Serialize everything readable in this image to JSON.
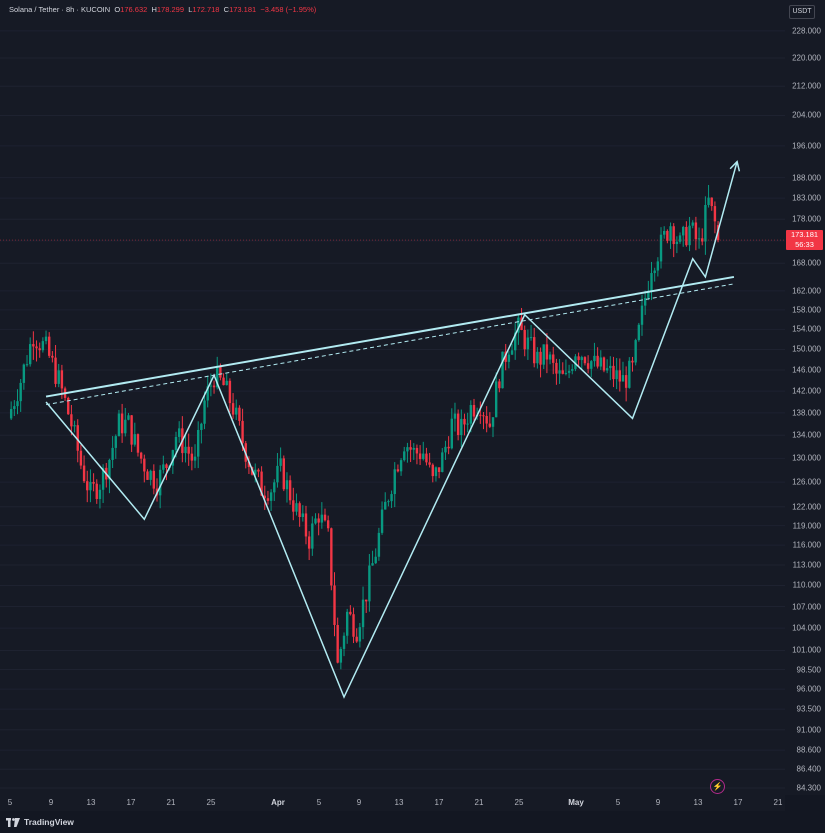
{
  "header": {
    "symbol": "Solana / Tether · 8h · KUCOIN",
    "open_label": "O",
    "open": "176.632",
    "high_label": "H",
    "high": "178.299",
    "low_label": "L",
    "low": "172.718",
    "close_label": "C",
    "close": "173.181",
    "change": "−3.458 (−1.95%)"
  },
  "currency": "USDT",
  "last_price": {
    "price": "173.181",
    "countdown": "56:33"
  },
  "brand": "TradingView",
  "colors": {
    "up": "#089981",
    "down": "#f23645",
    "background": "#161a25",
    "drawing": "#b2ebf2"
  },
  "chart_data": {
    "type": "candlestick",
    "price_scale": "log",
    "ylim": [
      84.3,
      236
    ],
    "y_ticks": [
      "228.000",
      "220.000",
      "212.000",
      "204.000",
      "196.000",
      "188.000",
      "183.000",
      "178.000",
      "173.000",
      "168.000",
      "162.000",
      "158.000",
      "154.000",
      "150.000",
      "146.000",
      "142.000",
      "138.000",
      "134.000",
      "130.000",
      "126.000",
      "122.000",
      "119.000",
      "116.000",
      "113.000",
      "110.000",
      "107.000",
      "104.000",
      "101.000",
      "98.500",
      "96.000",
      "93.500",
      "91.000",
      "88.600",
      "86.400",
      "84.300"
    ],
    "x_ticks": [
      "5",
      "9",
      "13",
      "17",
      "21",
      "25",
      "Apr",
      "5",
      "9",
      "13",
      "17",
      "21",
      "25",
      "May",
      "5",
      "9",
      "13",
      "17",
      "21"
    ],
    "price_path": [
      {
        "x": 0,
        "y": 137
      },
      {
        "x": 4,
        "y": 144
      },
      {
        "x": 8,
        "y": 153
      },
      {
        "x": 12,
        "y": 150
      },
      {
        "x": 16,
        "y": 144
      },
      {
        "x": 20,
        "y": 136
      },
      {
        "x": 23,
        "y": 129
      },
      {
        "x": 26,
        "y": 124
      },
      {
        "x": 29,
        "y": 126
      },
      {
        "x": 32,
        "y": 130
      },
      {
        "x": 35,
        "y": 136
      },
      {
        "x": 38,
        "y": 136
      },
      {
        "x": 41,
        "y": 131
      },
      {
        "x": 44,
        "y": 128
      },
      {
        "x": 47,
        "y": 126
      },
      {
        "x": 50,
        "y": 129
      },
      {
        "x": 53,
        "y": 134
      },
      {
        "x": 56,
        "y": 132
      },
      {
        "x": 59,
        "y": 129
      },
      {
        "x": 62,
        "y": 140
      },
      {
        "x": 65,
        "y": 145
      },
      {
        "x": 68,
        "y": 143
      },
      {
        "x": 71,
        "y": 139
      },
      {
        "x": 74,
        "y": 133
      },
      {
        "x": 77,
        "y": 128
      },
      {
        "x": 80,
        "y": 125
      },
      {
        "x": 83,
        "y": 125
      },
      {
        "x": 86,
        "y": 128
      },
      {
        "x": 89,
        "y": 124
      },
      {
        "x": 92,
        "y": 120
      },
      {
        "x": 95,
        "y": 117
      },
      {
        "x": 98,
        "y": 121
      },
      {
        "x": 101,
        "y": 117
      },
      {
        "x": 104,
        "y": 99
      },
      {
        "x": 107,
        "y": 106
      },
      {
        "x": 110,
        "y": 104
      },
      {
        "x": 113,
        "y": 109
      },
      {
        "x": 116,
        "y": 115
      },
      {
        "x": 119,
        "y": 122
      },
      {
        "x": 122,
        "y": 128
      },
      {
        "x": 125,
        "y": 133
      },
      {
        "x": 128,
        "y": 131
      },
      {
        "x": 131,
        "y": 131
      },
      {
        "x": 134,
        "y": 126
      },
      {
        "x": 137,
        "y": 130
      },
      {
        "x": 140,
        "y": 136
      },
      {
        "x": 143,
        "y": 135
      },
      {
        "x": 146,
        "y": 139
      },
      {
        "x": 149,
        "y": 140
      },
      {
        "x": 152,
        "y": 136
      },
      {
        "x": 155,
        "y": 145
      },
      {
        "x": 158,
        "y": 151
      },
      {
        "x": 161,
        "y": 154
      },
      {
        "x": 164,
        "y": 151
      },
      {
        "x": 167,
        "y": 148
      },
      {
        "x": 170,
        "y": 149
      },
      {
        "x": 173,
        "y": 145
      },
      {
        "x": 176,
        "y": 144
      },
      {
        "x": 179,
        "y": 150
      },
      {
        "x": 182,
        "y": 149
      },
      {
        "x": 185,
        "y": 147
      },
      {
        "x": 188,
        "y": 146
      },
      {
        "x": 191,
        "y": 145
      },
      {
        "x": 194,
        "y": 144
      },
      {
        "x": 197,
        "y": 146
      },
      {
        "x": 200,
        "y": 157
      },
      {
        "x": 203,
        "y": 168
      },
      {
        "x": 206,
        "y": 172
      },
      {
        "x": 209,
        "y": 177
      },
      {
        "x": 212,
        "y": 172
      },
      {
        "x": 215,
        "y": 176
      },
      {
        "x": 218,
        "y": 172
      },
      {
        "x": 221,
        "y": 182
      },
      {
        "x": 223,
        "y": 177
      },
      {
        "x": 224,
        "y": 173.181
      }
    ],
    "trendlines": [
      {
        "kind": "solid",
        "start": {
          "x": 12,
          "y": 141
        },
        "end": {
          "x": 229,
          "y": 165
        }
      },
      {
        "kind": "dashed",
        "start": {
          "x": 12,
          "y": 139.5
        },
        "end": {
          "x": 229,
          "y": 163.5
        }
      },
      {
        "kind": "zigzag-arrow",
        "points": [
          {
            "x": 12,
            "y": 140
          },
          {
            "x": 43,
            "y": 120
          },
          {
            "x": 65,
            "y": 145
          },
          {
            "x": 106,
            "y": 95
          },
          {
            "x": 163,
            "y": 157
          },
          {
            "x": 197,
            "y": 137
          },
          {
            "x": 216,
            "y": 169
          },
          {
            "x": 220,
            "y": 165
          },
          {
            "x": 230,
            "y": 192
          }
        ]
      }
    ]
  }
}
